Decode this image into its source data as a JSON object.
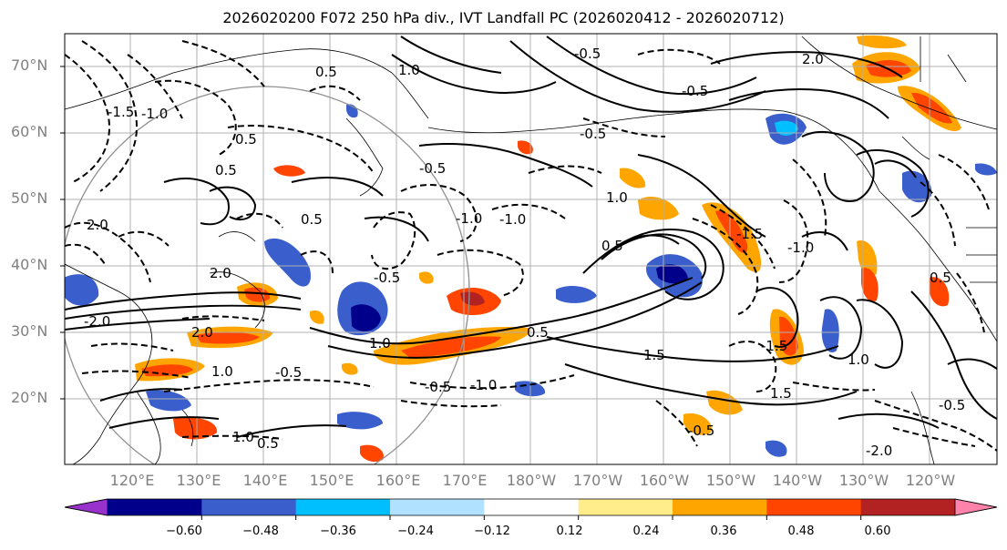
{
  "title": "2026020200 F072 250 hPa div., IVT Landfall PC (2026020412 - 2026020712)",
  "lat_labels": [
    "70°N",
    "60°N",
    "50°N",
    "40°N",
    "30°N",
    "20°N"
  ],
  "lon_labels": [
    "120°E",
    "130°E",
    "140°E",
    "150°E",
    "160°E",
    "170°E",
    "180°W",
    "170°W",
    "160°W",
    "150°W",
    "140°W",
    "130°W",
    "120°W"
  ],
  "colorbar": {
    "colors": [
      "#9932cc",
      "#00008b",
      "#3a5fcd",
      "#00bfff",
      "#b0e2ff",
      "#ffffff",
      "#ffec8b",
      "#ffa500",
      "#ff4500",
      "#b22222",
      "#ff82ab"
    ],
    "ticks": [
      "−0.60",
      "−0.48",
      "−0.36",
      "−0.24",
      "−0.12",
      "0.12",
      "0.24",
      "0.36",
      "0.48",
      "0.60"
    ]
  },
  "contour_labels": [
    "-0.5",
    "-1.0",
    "-1.5",
    "-2.0",
    "0.5",
    "1.0",
    "1.5",
    "2.0",
    "-0.5",
    "-1.0",
    "0.5",
    "1.0",
    "2.0",
    "1.5",
    "-0.5",
    "1.0",
    "0.5",
    "-2.0",
    "-1.5",
    "-1.0",
    "0.5",
    "-0.5",
    "1.0",
    "-0.5",
    "2.0",
    "-1.0",
    "-0.5",
    "0.5",
    "-0.5",
    "-1.0",
    "0.5",
    "-1.5",
    "0.5",
    "1.0",
    "-0.5",
    "0.5",
    "1.0",
    "2.0",
    "-0.5"
  ],
  "accent": {
    "grid": "#b0b0b0",
    "coast": "#000000",
    "contour": "#000000"
  }
}
